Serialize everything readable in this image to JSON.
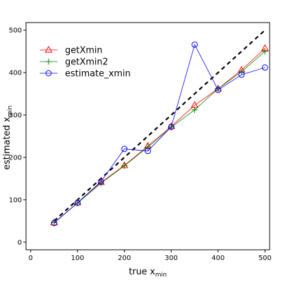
{
  "chart_data": {
    "type": "line",
    "xlabel": {
      "main": "true x",
      "sub": "min"
    },
    "ylabel": {
      "main": "estimated x",
      "sub": "min"
    },
    "xlim": [
      -10,
      510
    ],
    "ylim": [
      -18,
      518
    ],
    "xticks": [
      0,
      100,
      200,
      300,
      400,
      500
    ],
    "yticks": [
      0,
      100,
      200,
      300,
      400,
      500
    ],
    "grid": false,
    "legend_position": "top-left",
    "x": [
      50,
      100,
      150,
      200,
      250,
      300,
      350,
      400,
      450,
      500
    ],
    "reference_line": {
      "x": [
        50,
        500
      ],
      "y": [
        50,
        500
      ],
      "style": "dashed",
      "color": "#000000"
    },
    "series": [
      {
        "name": "getXmin",
        "marker": "triangle",
        "color": "#ff0000",
        "values": [
          46,
          93,
          141,
          181,
          227,
          273,
          323,
          362,
          406,
          457
        ]
      },
      {
        "name": "getXmin2",
        "marker": "plus",
        "color": "#008000",
        "values": [
          46,
          92,
          139,
          180,
          224,
          271,
          312,
          362,
          402,
          450
        ]
      },
      {
        "name": "estimate_xmin",
        "marker": "circle",
        "color": "#0000ff",
        "values": [
          45,
          93,
          143,
          220,
          215,
          272,
          466,
          359,
          395,
          412
        ]
      }
    ]
  }
}
